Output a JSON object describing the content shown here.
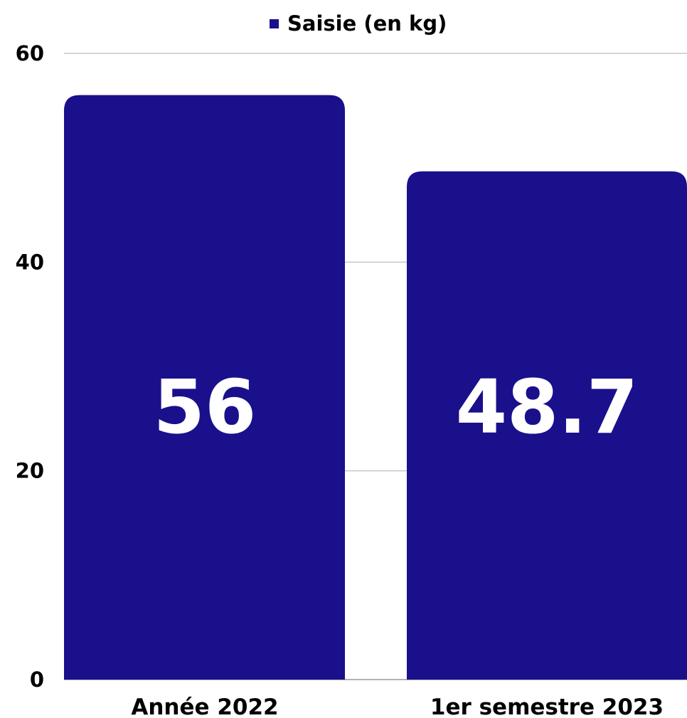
{
  "chart_data": {
    "type": "bar",
    "categories": [
      "Année 2022",
      "1er semestre 2023"
    ],
    "series": [
      {
        "name": "Saisie (en kg)",
        "values": [
          56,
          48.7
        ],
        "color": "#1a108c"
      }
    ],
    "data_labels": [
      "56",
      "48.7"
    ],
    "yticks": [
      0,
      20,
      40,
      60
    ],
    "ylim": [
      0,
      60
    ],
    "grid": true,
    "legend_position": "top-center",
    "label_color": "#ffffff",
    "grid_color": "#c8c8c8"
  }
}
